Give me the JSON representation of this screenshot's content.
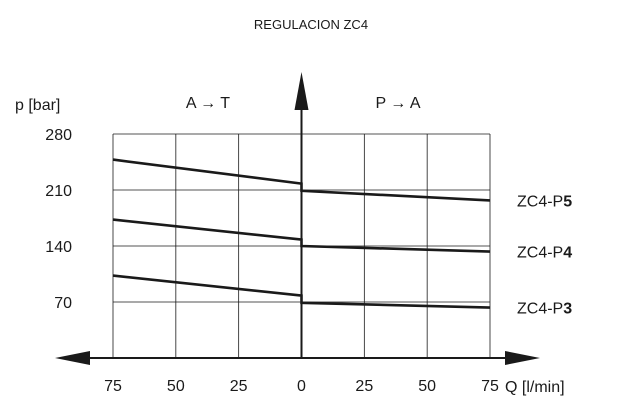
{
  "chart_data": {
    "type": "line",
    "title": "REGULACION  ZC4",
    "ylabel": "p [bar]",
    "xlabel": "Q [l/min]",
    "left_region_label": "A → T",
    "right_region_label": "P → A",
    "ylim": [
      0,
      280
    ],
    "xlim": [
      -75,
      75
    ],
    "yticks": [
      70,
      140,
      210,
      280
    ],
    "xticks": [
      -75,
      -50,
      -25,
      0,
      25,
      50,
      75
    ],
    "xtick_labels": [
      "75",
      "50",
      "25",
      "0",
      "25",
      "50",
      "75"
    ],
    "grid": true,
    "series": [
      {
        "name_prefix": "ZC4-P",
        "name_suffix": "5",
        "left": [
          [
            -75,
            248
          ],
          [
            0,
            218
          ]
        ],
        "right": [
          [
            0,
            209
          ],
          [
            75,
            197
          ]
        ]
      },
      {
        "name_prefix": "ZC4-P",
        "name_suffix": "4",
        "left": [
          [
            -75,
            173
          ],
          [
            0,
            148
          ]
        ],
        "right": [
          [
            0,
            140
          ],
          [
            75,
            133
          ]
        ]
      },
      {
        "name_prefix": "ZC4-P",
        "name_suffix": "3",
        "left": [
          [
            -75,
            103
          ],
          [
            0,
            78
          ]
        ],
        "right": [
          [
            0,
            69
          ],
          [
            75,
            63
          ]
        ]
      }
    ],
    "colors": {
      "line": "#1a1a1a",
      "grid": "#1a1a1a"
    }
  }
}
